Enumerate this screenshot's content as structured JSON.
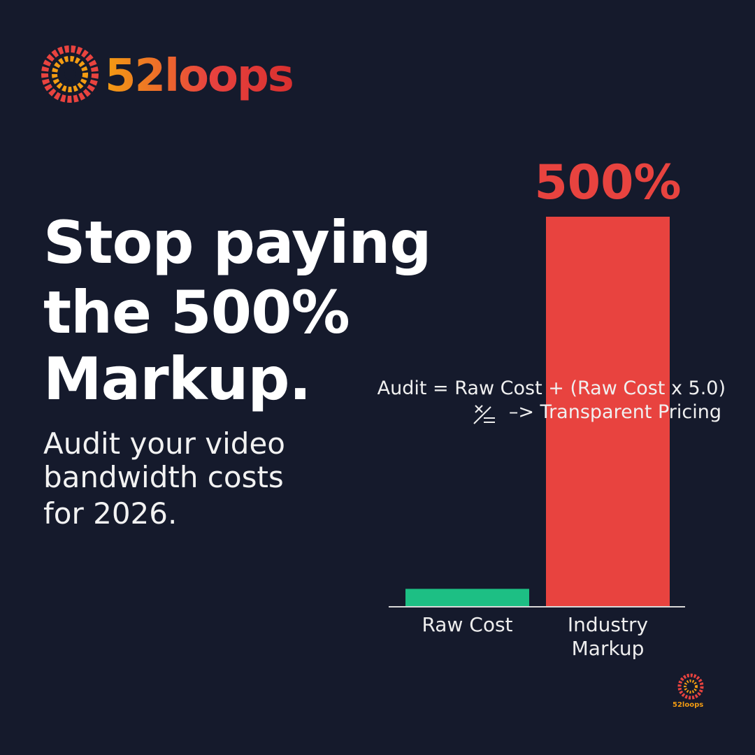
{
  "brand": {
    "name": "52loops"
  },
  "headline": [
    "Stop paying",
    "the 500%",
    "Markup."
  ],
  "subheadline": [
    "Audit your video",
    "bandwidth costs",
    "for 2026."
  ],
  "formula": [
    "Audit = Raw Cost + (Raw Cost x 5.0)",
    "–> Transparent Pricing"
  ],
  "chart_data": {
    "type": "bar",
    "categories": [
      "Raw Cost",
      "Industry Markup"
    ],
    "values": [
      23,
      500
    ],
    "value_labels": [
      null,
      "500%"
    ],
    "colors": [
      "#1dbf84",
      "#e8433f"
    ]
  },
  "footer_brand": "52loops"
}
